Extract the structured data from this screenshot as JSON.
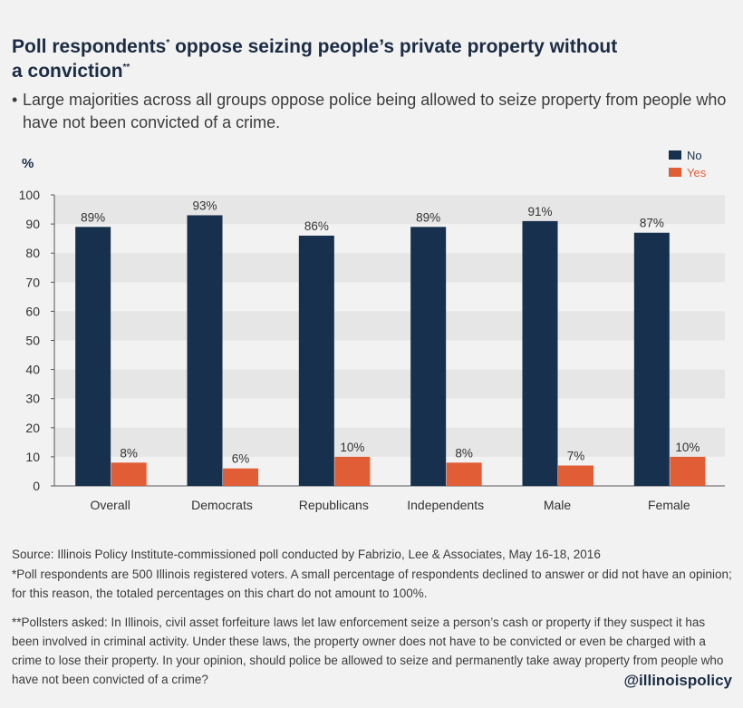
{
  "header": {
    "title_line1": "Poll respondents",
    "title_mark1": "*",
    "title_line1b": " oppose seizing people’s private property without",
    "title_line2": "a conviction",
    "title_mark2": "**",
    "bullet": "•",
    "subtitle": "Large majorities across all groups oppose police being allowed to seize property from people who have not been convicted of a crime."
  },
  "colors": {
    "no": "#16304e",
    "yes": "#e15d35",
    "band": "#e6e6e6",
    "background": "#f2f2f2"
  },
  "chart_data": {
    "type": "bar",
    "ylabel": "%",
    "ylim": [
      0,
      100
    ],
    "yticks": [
      0,
      10,
      20,
      30,
      40,
      50,
      60,
      70,
      80,
      90,
      100
    ],
    "categories": [
      "Overall",
      "Democrats",
      "Republicans",
      "Independents",
      "Male",
      "Female"
    ],
    "series": [
      {
        "name": "No",
        "values": [
          89,
          93,
          86,
          89,
          91,
          87
        ],
        "labels": [
          "89%",
          "93%",
          "86%",
          "89%",
          "91%",
          "87%"
        ]
      },
      {
        "name": "Yes",
        "values": [
          8,
          6,
          10,
          8,
          7,
          10
        ],
        "labels": [
          "8%",
          "6%",
          "10%",
          "8%",
          "7%",
          "10%"
        ]
      }
    ],
    "legend_position": "top-right",
    "grid": "alternating horizontal bands"
  },
  "footer": {
    "source": "Source: Illinois Policy Institute-commissioned poll conducted by Fabrizio, Lee & Associates, May 16-18, 2016",
    "note1": "*Poll respondents are 500 Illinois registered voters. A small percentage of respondents declined to answer or did not have an opinion; for this reason, the totaled percentages on this chart do not amount to 100%.",
    "note2": "**Pollsters asked: In Illinois, civil asset forfeiture laws let law enforcement seize a person’s cash or property if they suspect it has been involved in criminal activity. Under these laws, the property owner does not have to be convicted or even be charged with a crime to lose their property. In your opinion, should police be allowed to seize and permanently take away property from people who have not been convicted of a crime?",
    "handle": "@illinoispolicy"
  }
}
